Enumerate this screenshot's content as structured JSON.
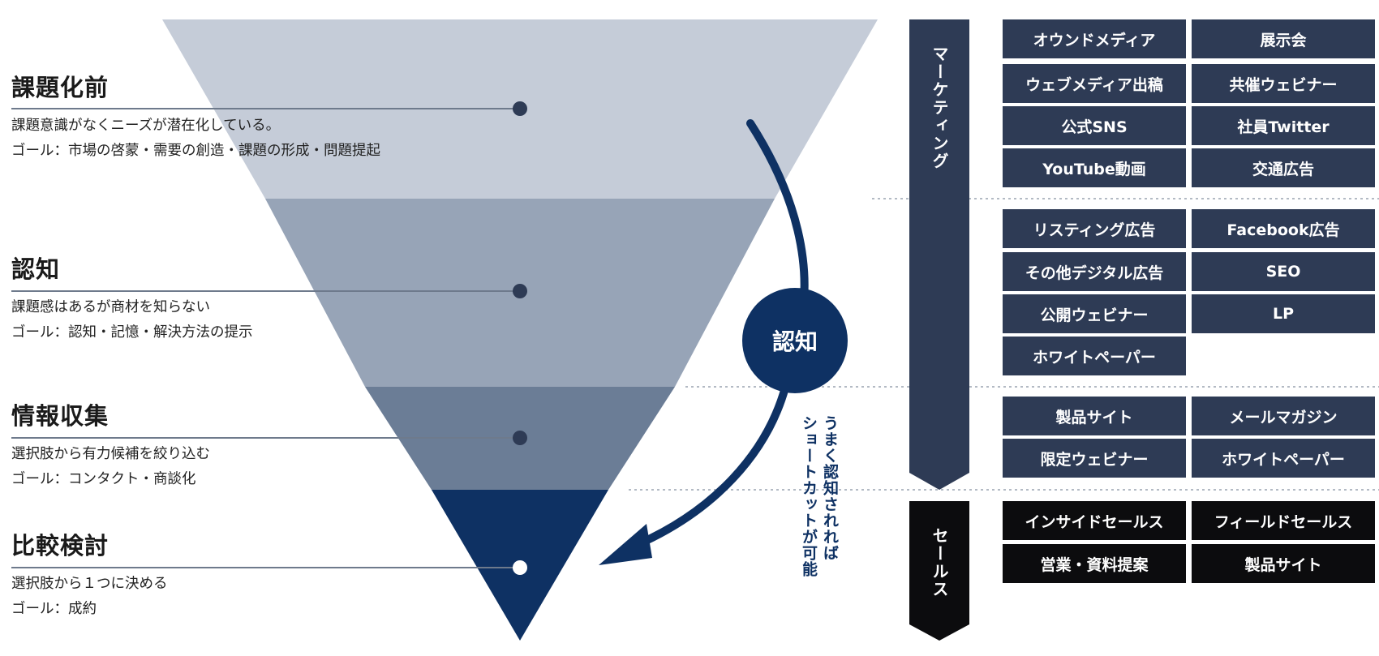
{
  "stages": [
    {
      "title": "課題化前",
      "desc1": "課題意識がなくニーズが潜在化している。",
      "desc2": "ゴール：市場の啓蒙・需要の創造・課題の形成・問題提起"
    },
    {
      "title": "認知",
      "desc1": "課題感はあるが商材を知らない",
      "desc2": "ゴール：認知・記憶・解決方法の提示"
    },
    {
      "title": "情報収集",
      "desc1": "選択肢から有力候補を絞り込む",
      "desc2": "ゴール：コンタクト・商談化"
    },
    {
      "title": "比較検討",
      "desc1": "選択肢から１つに決める",
      "desc2": "ゴール：成約"
    }
  ],
  "circle_label": "認知",
  "shortcut_text": "うまく認知されれば\nショートカットが可能",
  "marketing_label": "マーケティング",
  "sales_label": "セールス",
  "marketing_items": [
    "オウンドメディア",
    "展示会",
    "ウェブメディア出稿",
    "共催ウェビナー",
    "公式SNS",
    "社員Twitter",
    "YouTube動画",
    "交通広告",
    "リスティング広告",
    "Facebook広告",
    "その他デジタル広告",
    "SEO",
    "公開ウェビナー",
    "LP",
    "ホワイトペーパー",
    "製品サイト",
    "メールマガジン",
    "限定ウェビナー",
    "ホワイトペーパー"
  ],
  "sales_items": [
    "インサイドセールス",
    "フィールドセールス",
    "営業・資料提案",
    "製品サイト"
  ],
  "colors": {
    "band1": "#c5ccd8",
    "band2": "#97a4b7",
    "band3": "#6b7d96",
    "band4": "#0e3163",
    "marketing_pill": "#2e3b55",
    "sales_pill": "#0c0c0e",
    "arrow": "#0e3163"
  },
  "icons": [
    "leader-dot",
    "curved-arrow",
    "down-arrow-banner"
  ]
}
